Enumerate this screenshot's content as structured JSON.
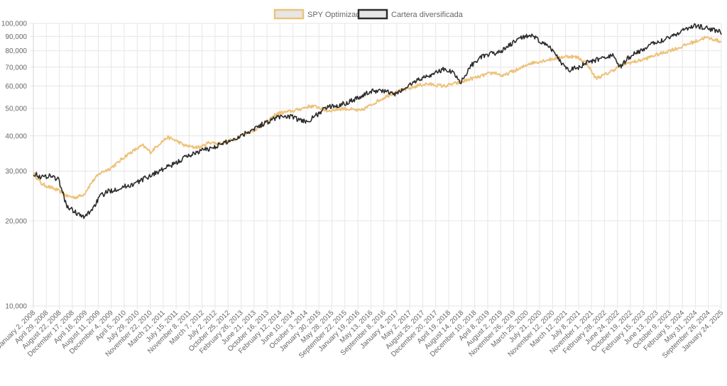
{
  "chart_data": {
    "type": "line",
    "y_scale": "log",
    "ylim": [
      10000,
      100000
    ],
    "y_ticks": [
      {
        "value": 100000,
        "label": "100,000"
      },
      {
        "value": 90000,
        "label": "90,000"
      },
      {
        "value": 80000,
        "label": "80,000"
      },
      {
        "value": 70000,
        "label": "70,000"
      },
      {
        "value": 60000,
        "label": "60,000"
      },
      {
        "value": 50000,
        "label": "50,000"
      },
      {
        "value": 40000,
        "label": "40,000"
      },
      {
        "value": 30000,
        "label": "30,000"
      },
      {
        "value": 20000,
        "label": "20,000"
      },
      {
        "value": 10000,
        "label": "10,000"
      }
    ],
    "x_ticks": [
      "January 2, 2008",
      "April 29, 2008",
      "August 22, 2008",
      "December 17, 2008",
      "April 16, 2009",
      "August 11, 2009",
      "December 4, 2009",
      "April 5, 2010",
      "July 29, 2010",
      "November 22, 2010",
      "March 21, 2011",
      "July 15, 2011",
      "November 8, 2011",
      "March 7, 2012",
      "July 2, 2012",
      "October 25, 2012",
      "February 26, 2013",
      "June 21, 2013",
      "October 16, 2013",
      "February 12, 2014",
      "June 10, 2014",
      "October 3, 2014",
      "January 30, 2015",
      "May 28, 2015",
      "September 22, 2015",
      "January 19, 2016",
      "May 13, 2016",
      "September 8, 2016",
      "January 4, 2017",
      "May 2, 2017",
      "August 25, 2017",
      "December 20, 2017",
      "April 19, 2018",
      "August 14, 2018",
      "December 10, 2018",
      "April 8, 2019",
      "August 2, 2019",
      "November 26, 2019",
      "March 25, 2020",
      "July 21, 2020",
      "November 12, 2020",
      "March 12, 2021",
      "July 8, 2021",
      "November 1, 2021",
      "February 28, 2022",
      "June 24, 2022",
      "October 19, 2022",
      "February 15, 2023",
      "June 13, 2023",
      "October 9, 2023",
      "February 5, 2024",
      "May 31, 2024",
      "September 26, 2024",
      "January 24, 2025"
    ],
    "grid": true,
    "legend_position": "top-center",
    "series": [
      {
        "name": "SPY Optimizado",
        "color": "#eec27a",
        "values": [
          29500,
          27000,
          26300,
          25600,
          24500,
          24200,
          24800,
          27500,
          29600,
          30500,
          32000,
          34000,
          35500,
          37000,
          35000,
          37500,
          39500,
          38500,
          37000,
          36500,
          36500,
          38000,
          37500,
          38000,
          39000,
          40500,
          41500,
          43000,
          45000,
          48000,
          48500,
          49000,
          50000,
          51000,
          50500,
          49000,
          49500,
          50000,
          49500,
          49000,
          51000,
          53000,
          55000,
          57000,
          58000,
          59000,
          60500,
          61000,
          60500,
          60000,
          61000,
          62000,
          63500,
          64500,
          66000,
          67000,
          65000,
          67500,
          69000,
          72000,
          73000,
          74000,
          75000,
          76000,
          76500,
          75500,
          72000,
          64000,
          65500,
          68000,
          71000,
          72500,
          73500,
          75000,
          77000,
          78500,
          80500,
          82000,
          84500,
          86500,
          89000,
          88000,
          86000
        ]
      },
      {
        "name": "Cartera diversificada",
        "color": "#2c2c2c",
        "values": [
          29500,
          28500,
          29000,
          28000,
          22500,
          21500,
          20500,
          22000,
          24500,
          25500,
          26000,
          26500,
          27000,
          28000,
          29000,
          30000,
          31000,
          32000,
          33500,
          34500,
          35500,
          36000,
          37000,
          38000,
          39000,
          40500,
          42000,
          43500,
          45000,
          46500,
          47000,
          46500,
          45000,
          45500,
          48000,
          50500,
          51000,
          52000,
          53500,
          55000,
          57000,
          58000,
          57500,
          56000,
          58000,
          61000,
          63500,
          65000,
          67000,
          69000,
          67000,
          62000,
          70000,
          75000,
          77000,
          78500,
          80500,
          84500,
          88500,
          91000,
          88000,
          84000,
          80000,
          72000,
          68500,
          70000,
          72500,
          74000,
          76000,
          77000,
          70000,
          76000,
          79000,
          82000,
          85000,
          87500,
          90000,
          93000,
          96500,
          98000,
          96500,
          95000,
          93000
        ]
      }
    ]
  }
}
